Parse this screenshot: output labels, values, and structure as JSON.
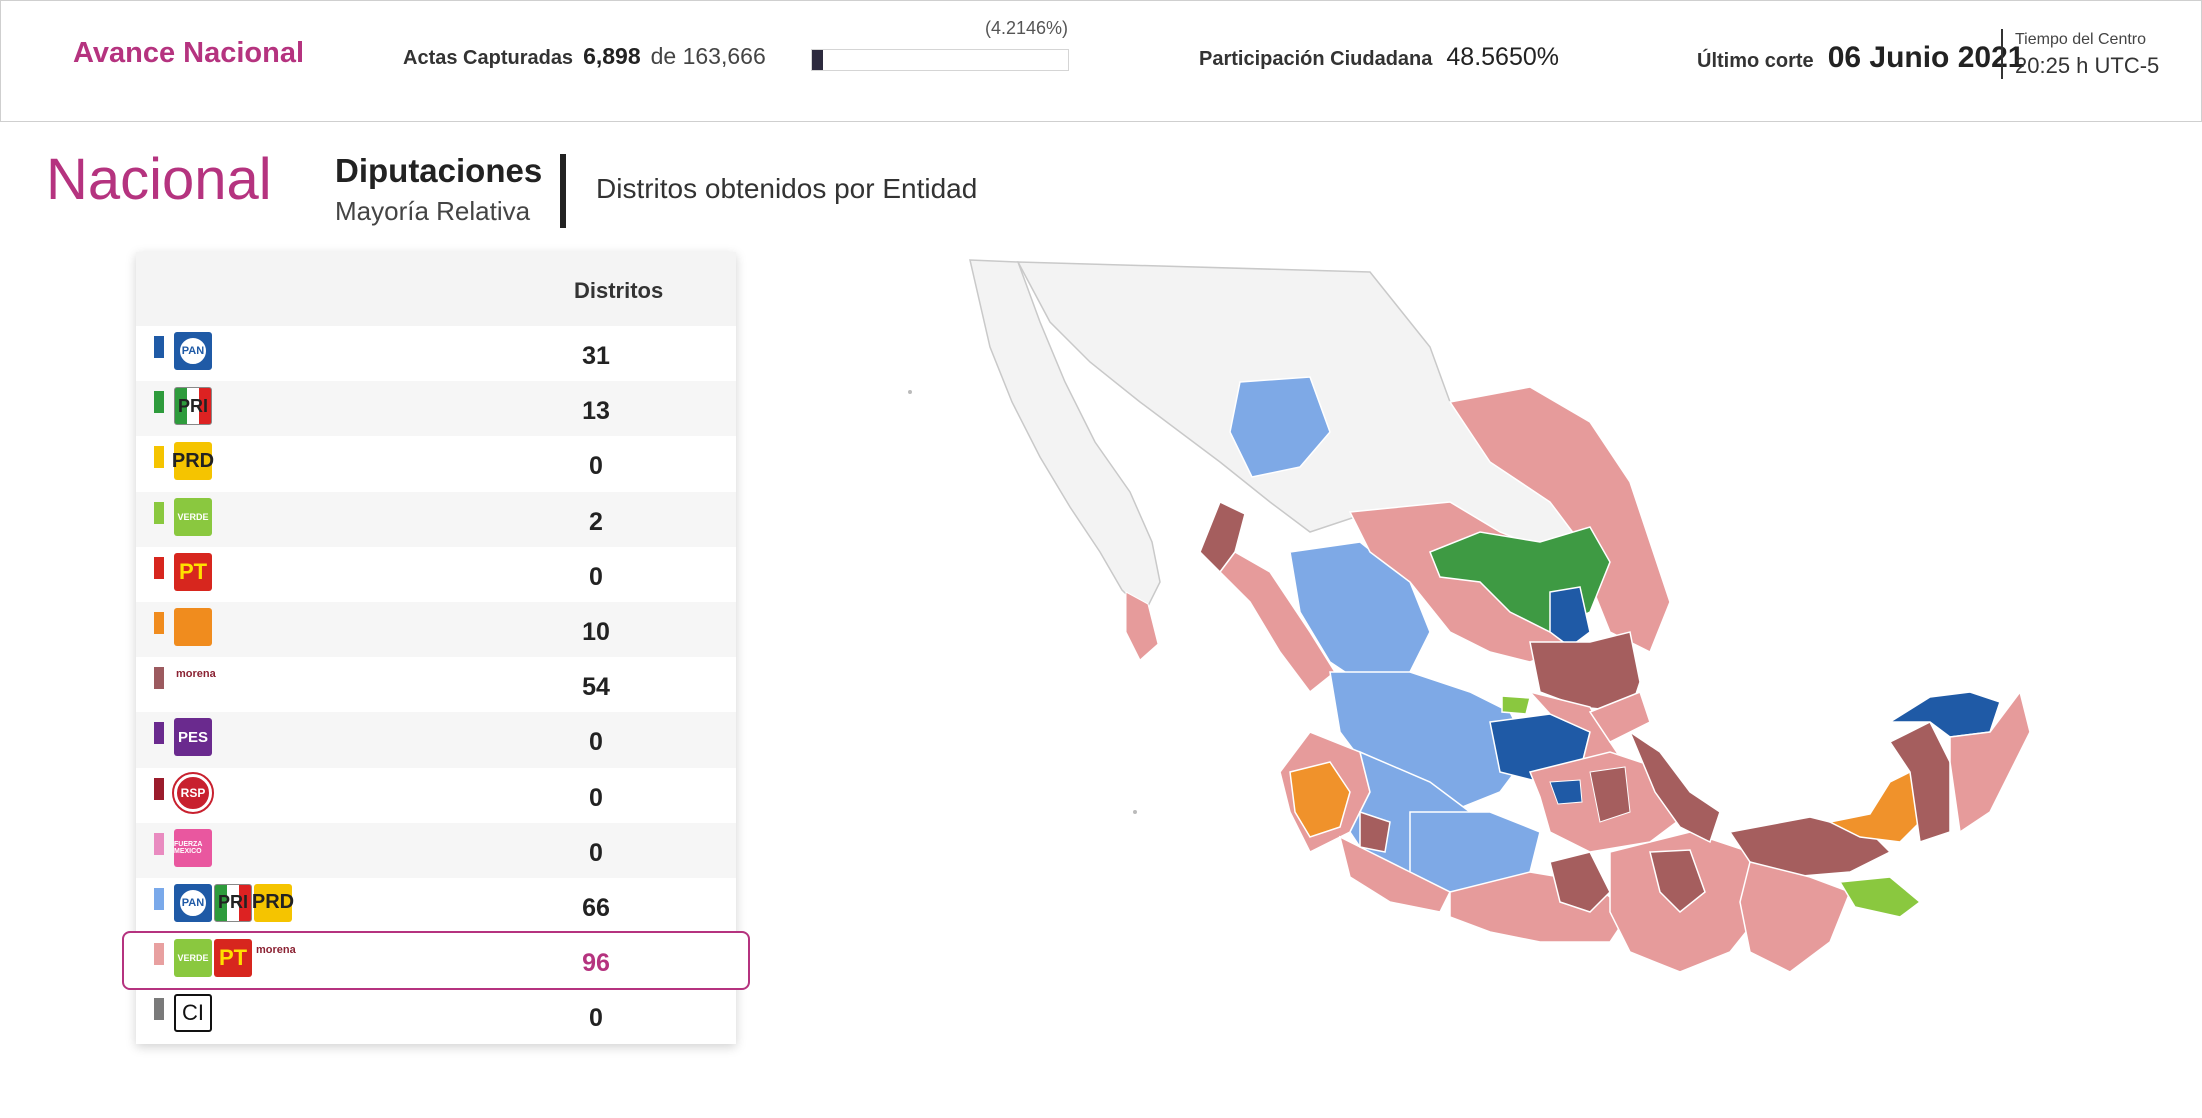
{
  "header": {
    "brand": "Avance Nacional",
    "actas_label": "Actas Capturadas",
    "actas_captured": "6,898",
    "actas_of": "de 163,666",
    "actas_percent": "(4.2146%)",
    "actas_progress_fraction": 0.042146,
    "participacion_label": "Participación Ciudadana",
    "participacion_value": "48.5650%",
    "corte_label": "Último corte",
    "corte_date": "06 Junio 2021",
    "tz_label": "Tiempo del Centro",
    "tz_time": "20:25 h UTC-5"
  },
  "title": {
    "scope": "Nacional",
    "election": "Diputaciones",
    "principle": "Mayoría Relativa",
    "view": "Distritos obtenidos por Entidad"
  },
  "table": {
    "column_header": "Distritos",
    "rows": [
      {
        "party": "PAN",
        "color": "#1f5aa6",
        "logos": [
          "pan-logo"
        ],
        "logo_text": [
          "PAN"
        ],
        "districts": "31"
      },
      {
        "party": "PRI",
        "color": "#2e9b3c",
        "logos": [
          "pri-logo"
        ],
        "logo_text": [
          "PRI"
        ],
        "districts": "13"
      },
      {
        "party": "PRD",
        "color": "#f5c400",
        "logos": [
          "prd-logo"
        ],
        "logo_text": [
          "PRD"
        ],
        "districts": "0"
      },
      {
        "party": "PVEM",
        "color": "#8ac83f",
        "logos": [
          "verde-logo"
        ],
        "logo_text": [
          "VERDE"
        ],
        "districts": "2"
      },
      {
        "party": "PT",
        "color": "#d7261e",
        "logos": [
          "pt-logo"
        ],
        "logo_text": [
          "PT"
        ],
        "districts": "0"
      },
      {
        "party": "MC",
        "color": "#f08c1e",
        "logos": [
          "mc-logo"
        ],
        "logo_text": [
          ""
        ],
        "districts": "10"
      },
      {
        "party": "MORENA",
        "color": "#9c5a5f",
        "logos": [
          "morena-logo"
        ],
        "logo_text": [
          "morena"
        ],
        "districts": "54"
      },
      {
        "party": "PES",
        "color": "#6a2a8e",
        "logos": [
          "pes-logo"
        ],
        "logo_text": [
          "PES"
        ],
        "districts": "0"
      },
      {
        "party": "RSP",
        "color": "#9b1c2c",
        "logos": [
          "rsp-logo"
        ],
        "logo_text": [
          "RSP"
        ],
        "districts": "0"
      },
      {
        "party": "FXM",
        "color": "#e98bc0",
        "logos": [
          "fxm-logo"
        ],
        "logo_text": [
          "FUERZA MEXICO"
        ],
        "districts": "0"
      },
      {
        "party": "PAN-PRI-PRD",
        "color": "#7aa9ea",
        "logos": [
          "pan-logo",
          "pri-logo",
          "prd-logo"
        ],
        "logo_text": [
          "PAN",
          "PRI",
          "PRD"
        ],
        "districts": "66"
      },
      {
        "party": "PVEM-PT-MORENA",
        "color": "#e8a0a0",
        "logos": [
          "verde-logo",
          "pt-logo",
          "morena-logo"
        ],
        "logo_text": [
          "VERDE",
          "PT",
          "morena"
        ],
        "districts": "96",
        "highlighted": true
      },
      {
        "party": "CI",
        "color": "#7a7a7a",
        "logos": [
          "ci-logo"
        ],
        "logo_text": [
          "CI"
        ],
        "districts": "0"
      }
    ]
  },
  "map": {
    "legend_colors": {
      "pan": "#1f5aa6",
      "pri": "#3e9a43",
      "verde": "#8ac83f",
      "mc": "#f0922b",
      "morena": "#a55e5e",
      "pan_pri_prd": "#7ea9e6",
      "verde_pt_morena": "#e69b9b",
      "no_data": "#f2f2f2"
    }
  }
}
